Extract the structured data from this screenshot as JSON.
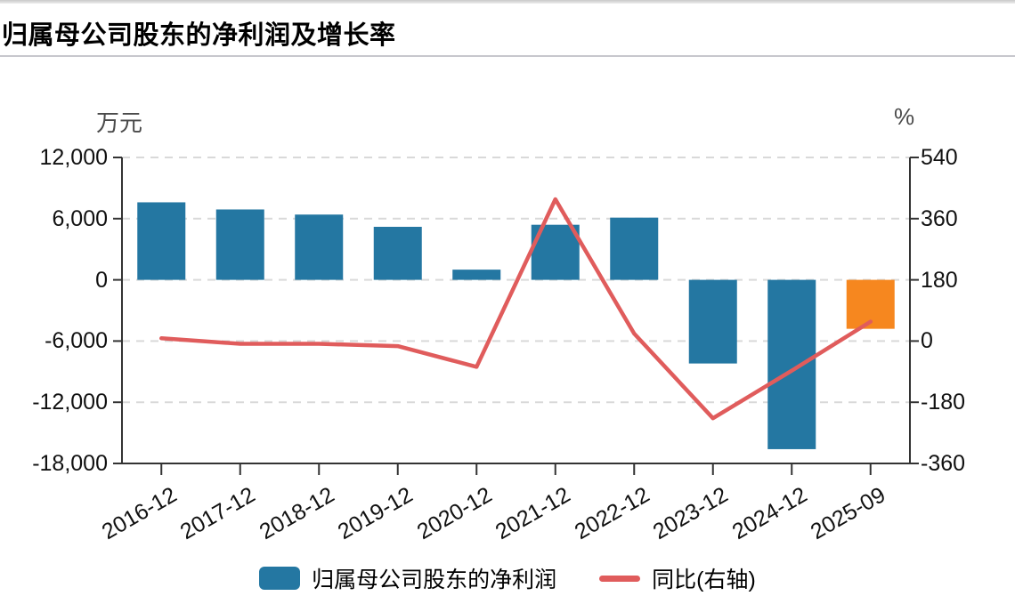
{
  "page": {
    "title": "归属母公司股东的净利润及增长率"
  },
  "chart_data": {
    "type": "bar",
    "subtype": "dual-axis bar + line",
    "title": "归属母公司股东的净利润及增长率",
    "categories": [
      "2016-12",
      "2017-12",
      "2018-12",
      "2019-12",
      "2020-12",
      "2021-12",
      "2022-12",
      "2023-12",
      "2024-12",
      "2025-09"
    ],
    "series": [
      {
        "name": "归属母公司股东的净利润",
        "type": "bar",
        "axis": "left",
        "unit": "万元",
        "values": [
          7600,
          6900,
          6400,
          5200,
          1000,
          5400,
          6100,
          -8200,
          -16600,
          -4800
        ],
        "color": "#2477a2",
        "highlight_index": 9,
        "highlight_color": "#f6871f"
      },
      {
        "name": "同比(右轴)",
        "type": "line",
        "axis": "right",
        "unit": "%",
        "values": [
          8,
          -8,
          -8,
          -15,
          -76,
          417,
          22,
          -227,
          -87,
          57
        ],
        "color": "#e05c5c"
      }
    ],
    "left_axis": {
      "label": "万元",
      "min": -18000,
      "max": 12000,
      "tick_labels": [
        "12,000",
        "6,000",
        "0",
        "-6,000",
        "-12,000",
        "-18,000"
      ]
    },
    "right_axis": {
      "label": "%",
      "min": -360,
      "max": 540,
      "tick_labels": [
        "540",
        "360",
        "180",
        "0",
        "-180",
        "-360"
      ]
    },
    "grid": true,
    "legend_position": "bottom",
    "colors": {
      "bar": "#2477a2",
      "bar_highlight": "#f6871f",
      "line": "#e05c5c",
      "gridline": "#d9d9d9",
      "axis": "#333333"
    }
  },
  "legend": {
    "bar_label": "归属母公司股东的净利润",
    "line_label": "同比(右轴)"
  }
}
